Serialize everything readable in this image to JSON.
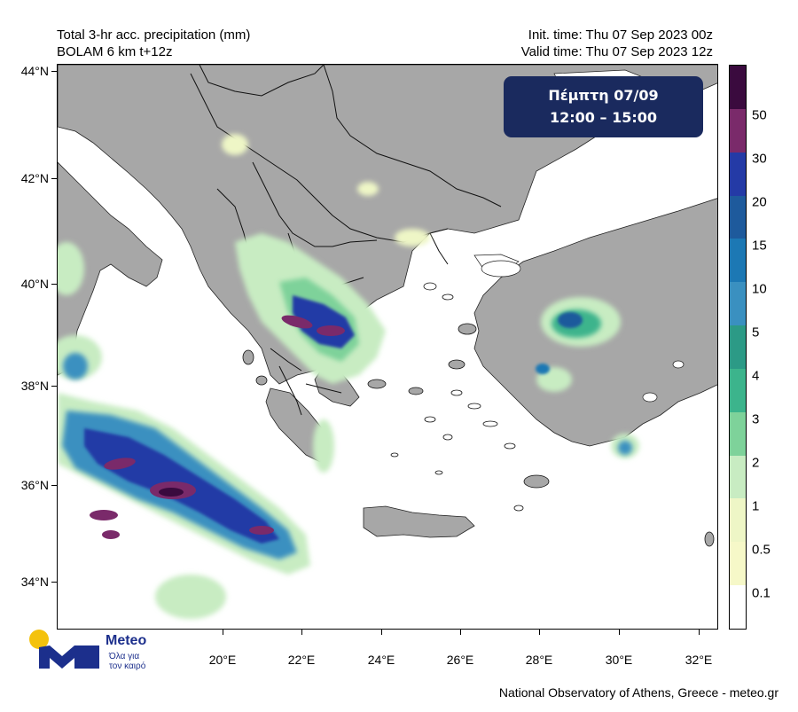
{
  "header": {
    "title_line1": "Total 3-hr acc. precipitation (mm)",
    "title_line2": "BOLAM 6 km t+12z",
    "init_time": "Init. time: Thu 07 Sep 2023 00z",
    "valid_time": "Valid time: Thu 07 Sep 2023 12z"
  },
  "day_box": {
    "day": "Πέμπτη 07/09",
    "hours": "12:00 – 15:00"
  },
  "axes": {
    "lat_labels": [
      "44°N",
      "42°N",
      "40°N",
      "38°N",
      "36°N",
      "34°N"
    ],
    "lon_labels": [
      "20°E",
      "22°E",
      "24°E",
      "26°E",
      "28°E",
      "30°E",
      "32°E"
    ]
  },
  "colorbar": {
    "unit": "mm",
    "labels": [
      "50",
      "30",
      "20",
      "15",
      "10",
      "5",
      "4",
      "3",
      "2",
      "1",
      "0.5",
      "0.1"
    ],
    "colors": [
      "#3a0a3e",
      "#7a2a6a",
      "#243aa6",
      "#1e5a9c",
      "#1c78b4",
      "#3a90c0",
      "#2c9a86",
      "#3cb48c",
      "#7ed29a",
      "#c8ecc2",
      "#eef6c6",
      "#f6f8c8",
      "#ffffff"
    ]
  },
  "logo": {
    "name": "Meteo",
    "tagline_1": "Όλα για",
    "tagline_2": "τον καιρό"
  },
  "footer": "National Observatory of Athens, Greece - meteo.gr"
}
